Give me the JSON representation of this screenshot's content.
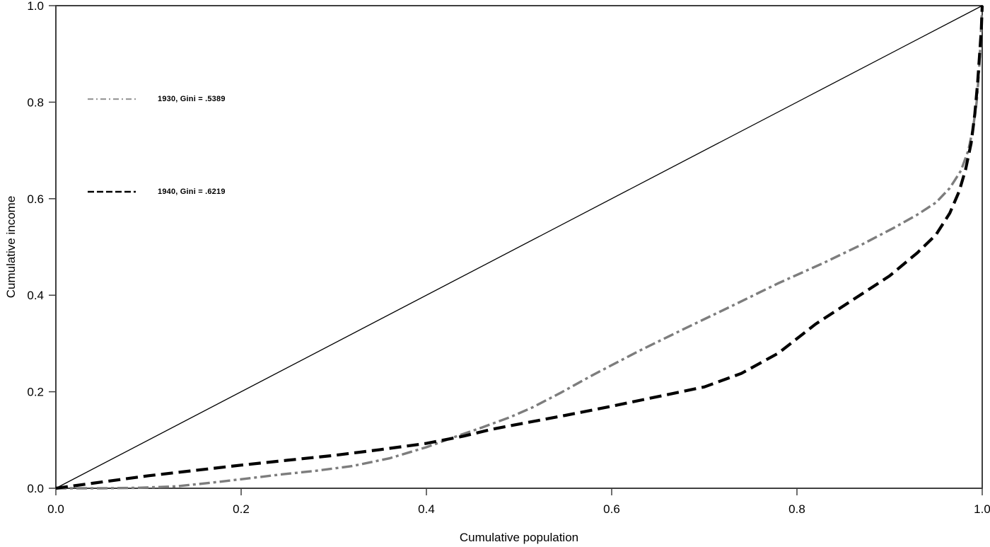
{
  "chart_data": {
    "type": "line",
    "title": "",
    "xlabel": "Cumulative population",
    "ylabel": "Cumulative income",
    "xlim": [
      0.0,
      1.0
    ],
    "ylim": [
      0.0,
      1.0
    ],
    "grid": false,
    "frame": "full-box",
    "frame_color": "#3f3f3f",
    "legend_position": "upper-left-inside",
    "x_ticks": [
      {
        "value": 0.0,
        "label": "0.0"
      },
      {
        "value": 0.2,
        "label": "0.2"
      },
      {
        "value": 0.4,
        "label": "0.4"
      },
      {
        "value": 0.6,
        "label": "0.6"
      },
      {
        "value": 0.8,
        "label": "0.8"
      },
      {
        "value": 1.0,
        "label": "1.0"
      }
    ],
    "y_ticks": [
      {
        "value": 0.0,
        "label": "0.0"
      },
      {
        "value": 0.2,
        "label": "0.2"
      },
      {
        "value": 0.4,
        "label": "0.4"
      },
      {
        "value": 0.6,
        "label": "0.6"
      },
      {
        "value": 0.8,
        "label": "0.8"
      },
      {
        "value": 1.0,
        "label": "1.0"
      }
    ],
    "series": [
      {
        "id": "equality",
        "name": "Line of equality",
        "style": "solid",
        "color": "#000000",
        "width": 1.3,
        "points": [
          [
            0,
            0
          ],
          [
            1,
            1
          ]
        ]
      },
      {
        "id": "1930",
        "name": "1930, Gini = .5389",
        "gini": 0.5389,
        "style": "dash-dot",
        "color": "#7d7d7d",
        "width": 3.4,
        "points": [
          [
            0,
            0
          ],
          [
            0.05,
            0
          ],
          [
            0.09,
            0.001
          ],
          [
            0.13,
            0.004
          ],
          [
            0.17,
            0.012
          ],
          [
            0.21,
            0.021
          ],
          [
            0.245,
            0.029
          ],
          [
            0.28,
            0.036
          ],
          [
            0.32,
            0.046
          ],
          [
            0.36,
            0.062
          ],
          [
            0.4,
            0.085
          ],
          [
            0.43,
            0.106
          ],
          [
            0.46,
            0.126
          ],
          [
            0.49,
            0.147
          ],
          [
            0.515,
            0.168
          ],
          [
            0.545,
            0.198
          ],
          [
            0.58,
            0.235
          ],
          [
            0.63,
            0.285
          ],
          [
            0.68,
            0.332
          ],
          [
            0.73,
            0.378
          ],
          [
            0.78,
            0.425
          ],
          [
            0.83,
            0.468
          ],
          [
            0.87,
            0.505
          ],
          [
            0.905,
            0.54
          ],
          [
            0.93,
            0.567
          ],
          [
            0.95,
            0.592
          ],
          [
            0.965,
            0.622
          ],
          [
            0.977,
            0.658
          ],
          [
            0.985,
            0.7
          ],
          [
            0.99,
            0.745
          ],
          [
            0.994,
            0.8
          ],
          [
            0.9965,
            0.862
          ],
          [
            0.998,
            0.92
          ],
          [
            1,
            1
          ]
        ]
      },
      {
        "id": "1940",
        "name": "1940, Gini = .6219",
        "gini": 0.6219,
        "style": "dashed",
        "color": "#000000",
        "width": 4.2,
        "points": [
          [
            0,
            0
          ],
          [
            0.05,
            0.013
          ],
          [
            0.1,
            0.026
          ],
          [
            0.15,
            0.037
          ],
          [
            0.2,
            0.048
          ],
          [
            0.25,
            0.058
          ],
          [
            0.3,
            0.068
          ],
          [
            0.35,
            0.08
          ],
          [
            0.4,
            0.093
          ],
          [
            0.44,
            0.108
          ],
          [
            0.47,
            0.122
          ],
          [
            0.5,
            0.133
          ],
          [
            0.55,
            0.151
          ],
          [
            0.6,
            0.17
          ],
          [
            0.65,
            0.19
          ],
          [
            0.7,
            0.21
          ],
          [
            0.74,
            0.238
          ],
          [
            0.78,
            0.28
          ],
          [
            0.82,
            0.34
          ],
          [
            0.86,
            0.39
          ],
          [
            0.9,
            0.44
          ],
          [
            0.93,
            0.488
          ],
          [
            0.95,
            0.525
          ],
          [
            0.965,
            0.57
          ],
          [
            0.975,
            0.615
          ],
          [
            0.982,
            0.66
          ],
          [
            0.988,
            0.715
          ],
          [
            0.992,
            0.775
          ],
          [
            0.995,
            0.84
          ],
          [
            0.997,
            0.895
          ],
          [
            0.999,
            0.95
          ],
          [
            1,
            1
          ]
        ]
      }
    ]
  },
  "legend": {
    "items": [
      {
        "label": "1930, Gini = .5389",
        "color": "#9a9a9a",
        "style": "dash-dot"
      },
      {
        "label": "1940, Gini = .6219",
        "color": "#000000",
        "style": "dashed"
      }
    ]
  }
}
